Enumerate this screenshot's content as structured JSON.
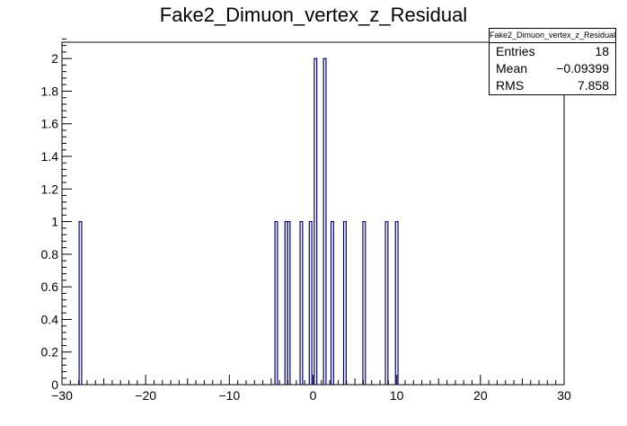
{
  "chart_data": {
    "type": "histogram",
    "title": "Fake2_Dimuon_vertex_z_Residual",
    "xlim": [
      -30,
      30
    ],
    "ylim": [
      0,
      2.1
    ],
    "x_ticks": [
      -30,
      -20,
      -10,
      0,
      10,
      20,
      30
    ],
    "x_tick_labels": [
      "−30",
      "−20",
      "−10",
      "0",
      "10",
      "20",
      "30"
    ],
    "y_ticks": [
      0,
      0.2,
      0.4,
      0.6,
      0.8,
      1,
      1.2,
      1.4,
      1.6,
      1.8,
      2
    ],
    "y_tick_labels": [
      "0",
      "0.2",
      "0.4",
      "0.6",
      "0.8",
      "1",
      "1.2",
      "1.4",
      "1.6",
      "1.8",
      "2"
    ],
    "bin_width": 0.3,
    "bins": [
      {
        "x": -27.8,
        "count": 1
      },
      {
        "x": -4.4,
        "count": 1
      },
      {
        "x": -3.2,
        "count": 1
      },
      {
        "x": -2.9,
        "count": 1
      },
      {
        "x": -1.4,
        "count": 1
      },
      {
        "x": -0.3,
        "count": 1
      },
      {
        "x": 0.3,
        "count": 2
      },
      {
        "x": 1.4,
        "count": 2
      },
      {
        "x": 2.3,
        "count": 1
      },
      {
        "x": 3.8,
        "count": 1
      },
      {
        "x": 6.1,
        "count": 1
      },
      {
        "x": 8.8,
        "count": 1
      },
      {
        "x": 10.0,
        "count": 1
      }
    ],
    "line_color": "#00007f",
    "stats": {
      "title": "Fake2_Dimuon_vertex_z_Residual",
      "entries_label": "Entries",
      "entries_value": "18",
      "mean_label": "Mean",
      "mean_value": "−0.09399",
      "rms_label": "RMS",
      "rms_value": "7.858"
    }
  }
}
